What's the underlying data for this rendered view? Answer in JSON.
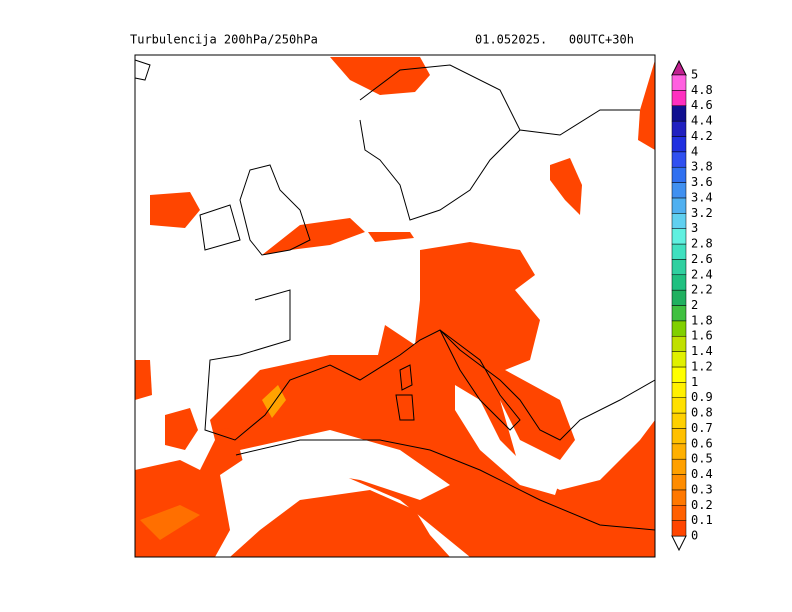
{
  "header": {
    "title": "Turbulencija 200hPa/250hPa",
    "time": "01.052025.   00UTC+30h"
  },
  "colorbar": {
    "labels": [
      0,
      0.1,
      0.2,
      0.3,
      0.4,
      0.5,
      0.6,
      0.7,
      0.8,
      0.9,
      1,
      1.2,
      1.4,
      1.6,
      1.8,
      2,
      2.2,
      2.4,
      2.6,
      2.8,
      3,
      3.2,
      3.4,
      3.6,
      3.8,
      4,
      4.2,
      4.4,
      4.6,
      4.8,
      5
    ],
    "colors": [
      "#ff4500",
      "#ff6000",
      "#ff7800",
      "#ff8c00",
      "#ffa000",
      "#ffb000",
      "#ffc000",
      "#ffd000",
      "#ffe000",
      "#fff000",
      "#ffff00",
      "#e0f000",
      "#c0e000",
      "#80d000",
      "#40c040",
      "#20b060",
      "#20c080",
      "#30d0a0",
      "#40e0c0",
      "#60f0e0",
      "#60d0f0",
      "#50b0f0",
      "#4090f0",
      "#3070f0",
      "#3050f0",
      "#2030e0",
      "#2020c0",
      "#101090",
      "#ff30c0",
      "#ff60e0"
    ],
    "under_color": "#ffffff",
    "over_color": "#c02090"
  }
}
